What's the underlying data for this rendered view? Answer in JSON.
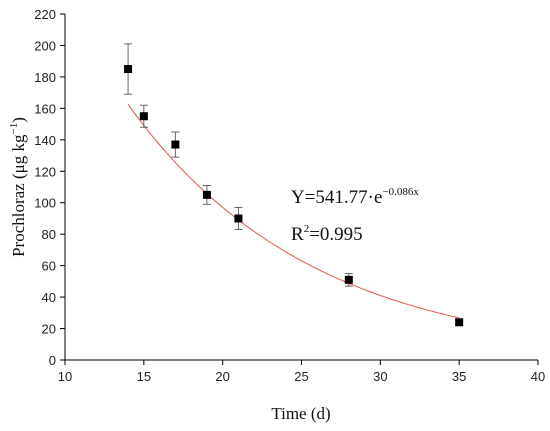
{
  "chart_data": {
    "type": "scatter",
    "xlabel": "Time (d)",
    "ylabel_main": "Prochloraz (μg kg",
    "ylabel_sup": "−1",
    "ylabel_close": ")",
    "xlim": [
      10,
      40
    ],
    "ylim": [
      0,
      220
    ],
    "x_ticks": [
      10,
      15,
      20,
      25,
      30,
      35,
      40
    ],
    "y_ticks": [
      0,
      20,
      40,
      60,
      80,
      100,
      120,
      140,
      160,
      180,
      200,
      220
    ],
    "points": [
      {
        "x": 14,
        "y": 185,
        "err": 16
      },
      {
        "x": 15,
        "y": 155,
        "err": 7
      },
      {
        "x": 17,
        "y": 137,
        "err": 8
      },
      {
        "x": 19,
        "y": 105,
        "err": 6
      },
      {
        "x": 21,
        "y": 90,
        "err": 7
      },
      {
        "x": 28,
        "y": 51,
        "err": 4
      },
      {
        "x": 35,
        "y": 24,
        "err": 2
      }
    ],
    "fit": {
      "a": 541.77,
      "b": 0.086,
      "x_start": 14,
      "x_end": 35,
      "color": "#e8544c"
    },
    "equation": {
      "prefix": "Y=541.77·e",
      "exponent": "−0.086x",
      "r2_prefix": "R",
      "r2_sup": "2",
      "r2_value": "=0.995"
    },
    "grid": false,
    "marker_color": "#000000"
  }
}
